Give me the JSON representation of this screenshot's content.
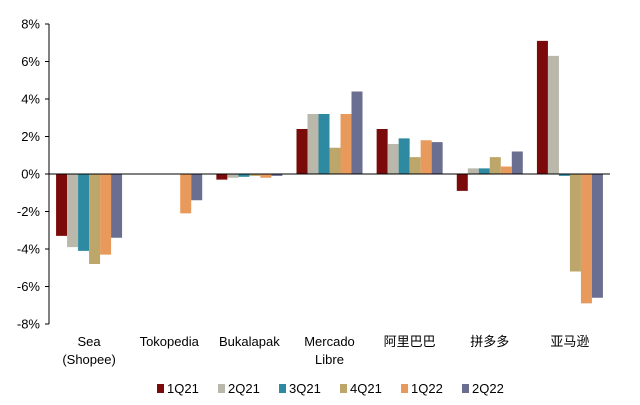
{
  "chart_data": {
    "type": "bar",
    "categories": [
      [
        "Sea",
        "(Shopee)"
      ],
      [
        "Tokopedia"
      ],
      [
        "Bukalapak"
      ],
      [
        "Mercado",
        "Libre"
      ],
      [
        "阿里巴巴"
      ],
      [
        "拼多多"
      ],
      [
        "亚马逊"
      ]
    ],
    "series": [
      {
        "name": "1Q21",
        "color": "#7b0a0a",
        "values": [
          -3.3,
          null,
          -0.3,
          2.4,
          2.4,
          -0.9,
          7.1
        ]
      },
      {
        "name": "2Q21",
        "color": "#b9b8aa",
        "values": [
          -3.9,
          null,
          -0.2,
          3.2,
          1.6,
          0.3,
          6.3
        ]
      },
      {
        "name": "3Q21",
        "color": "#2e8aa0",
        "values": [
          -4.1,
          null,
          -0.15,
          3.2,
          1.9,
          0.3,
          -0.1
        ]
      },
      {
        "name": "4Q21",
        "color": "#bda66a",
        "values": [
          -4.8,
          null,
          -0.1,
          1.4,
          0.9,
          0.9,
          -5.2
        ]
      },
      {
        "name": "1Q22",
        "color": "#e89a5c",
        "values": [
          -4.3,
          -2.1,
          -0.2,
          3.2,
          1.8,
          0.4,
          -6.9
        ]
      },
      {
        "name": "2Q22",
        "color": "#6a6e90",
        "values": [
          -3.4,
          -1.4,
          -0.1,
          4.4,
          1.7,
          1.2,
          -6.6
        ]
      }
    ],
    "yticks": [
      "8%",
      "6%",
      "4%",
      "2%",
      "0%",
      "-2%",
      "-4%",
      "-6%",
      "-8%"
    ],
    "ylim": [
      -8,
      8
    ],
    "legend_position": "bottom",
    "grid": false
  }
}
